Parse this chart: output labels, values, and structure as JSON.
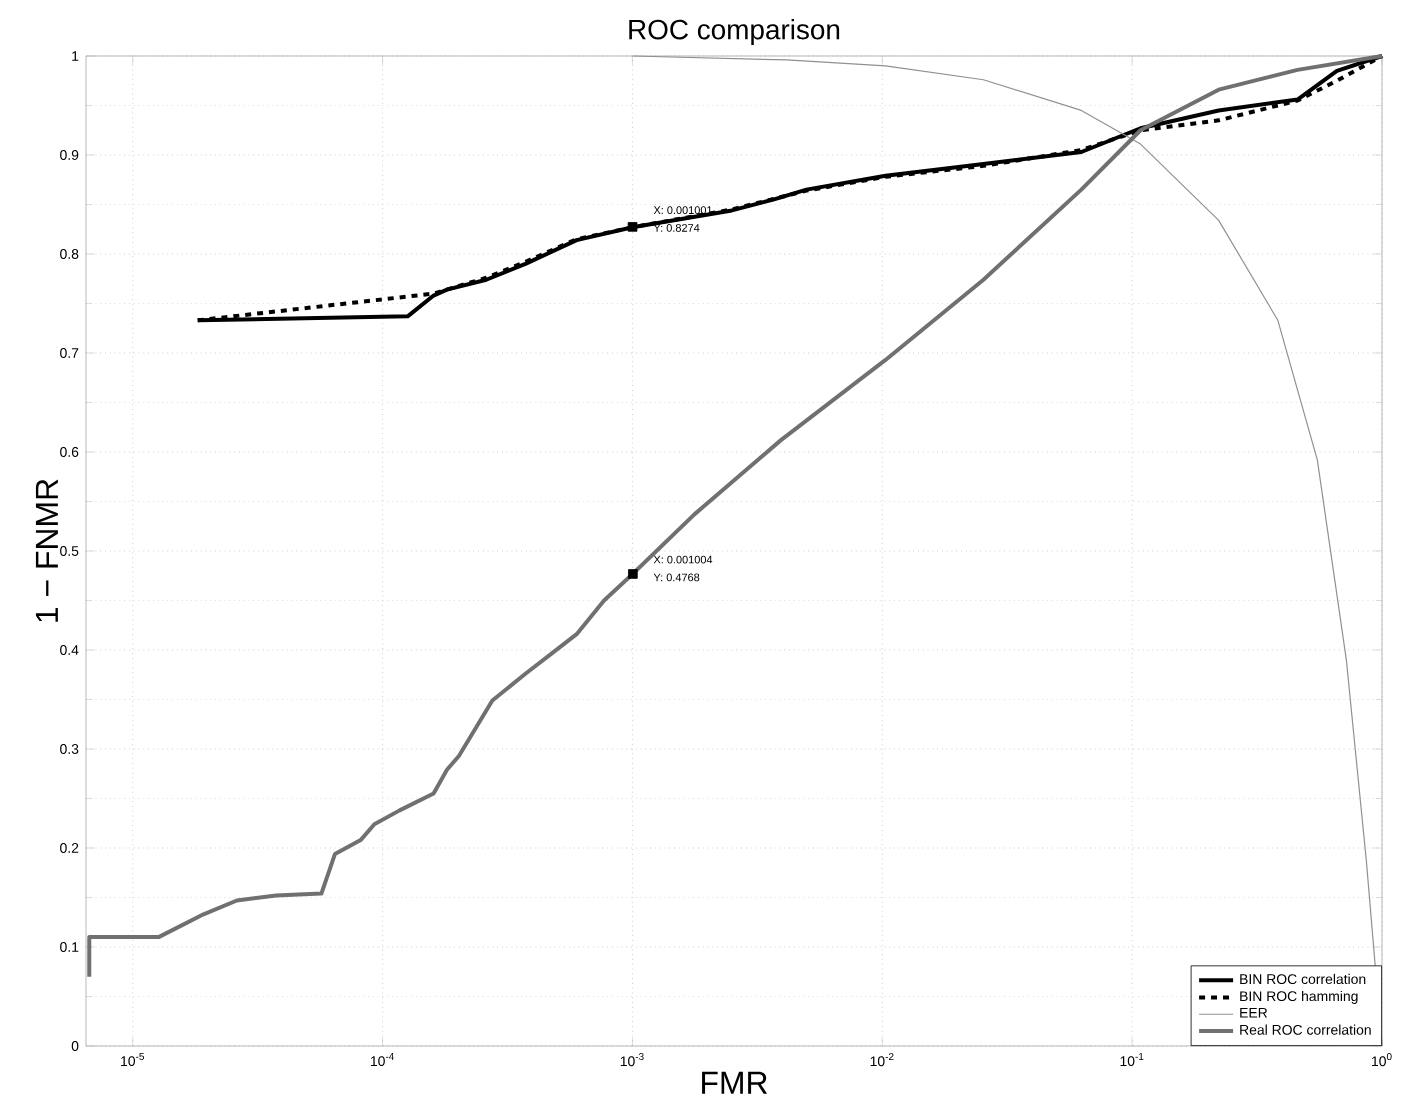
{
  "chart_data": {
    "type": "line",
    "title": "ROC comparison",
    "xlabel": "FMR",
    "ylabel": "1 − FNMR",
    "log": "x",
    "grid": true,
    "legend": "bottom right",
    "marker": "none",
    "xlim": [
      6.5e-06,
      1
    ],
    "ylim": [
      0,
      1
    ],
    "xticks": [
      {
        "value": 1e-05,
        "label": "10$^{-5}$"
      },
      {
        "value": 0.0001,
        "label": "10$^{-4}$"
      },
      {
        "value": 0.001,
        "label": "10$^{-3}$"
      },
      {
        "value": 0.01,
        "label": "10$^{-2}$"
      },
      {
        "value": 0.1,
        "label": "10$^{-1}$"
      },
      {
        "value": 1,
        "label": "10$^{0}$"
      }
    ],
    "yticks": [
      0,
      0.1,
      0.2,
      0.3,
      0.4,
      0.5,
      0.6,
      0.7,
      0.8,
      0.9,
      1
    ],
    "series": [
      {
        "name": "BIN ROC correlation",
        "color": "#000000",
        "line_style": "solid",
        "x": [
          1.82e-05,
          0.000126,
          0.00016,
          0.000181,
          0.00026,
          0.000373,
          0.000598,
          0.001001,
          0.0025,
          0.00366,
          0.00497,
          0.0103,
          0.0254,
          0.0626,
          0.108,
          0.222,
          0.459,
          0.66,
          1
        ],
        "values": [
          0.733,
          0.737,
          0.758,
          0.764,
          0.774,
          0.79,
          0.814,
          0.827,
          0.844,
          0.855,
          0.865,
          0.879,
          0.891,
          0.903,
          0.927,
          0.945,
          0.956,
          0.985,
          1
        ]
      },
      {
        "name": "BIN ROC hamming",
        "color": "#000000",
        "line_style": "dashed",
        "x": [
          1.82e-05,
          0.00016,
          0.00026,
          0.000373,
          0.000598,
          0.001001,
          0.0025,
          0.00497,
          0.0103,
          0.0254,
          0.0626,
          0.108,
          0.222,
          0.459,
          0.66,
          1
        ],
        "values": [
          0.733,
          0.76,
          0.776,
          0.792,
          0.815,
          0.827,
          0.845,
          0.864,
          0.878,
          0.889,
          0.905,
          0.925,
          0.935,
          0.955,
          0.975,
          1
        ]
      },
      {
        "name": "EER",
        "color": "#909090",
        "line_style": "solid",
        "x": [
          0.001,
          0.00415,
          0.0103,
          0.0254,
          0.0626,
          0.108,
          0.222,
          0.383,
          0.551,
          0.72,
          0.865,
          1
        ],
        "values": [
          1,
          0.996,
          0.99,
          0.976,
          0.945,
          0.911,
          0.834,
          0.733,
          0.592,
          0.39,
          0.188,
          0
        ]
      },
      {
        "name": "Real ROC correlation",
        "color": "#707070",
        "line_style": "solid",
        "x": [
          6.7e-06,
          6.7e-06,
          1.27e-05,
          1.92e-05,
          2.61e-05,
          3.75e-05,
          5.69e-05,
          6.45e-05,
          8.17e-05,
          9.27e-05,
          0.000117,
          0.00016,
          0.000181,
          0.000202,
          0.000275,
          0.000373,
          0.000473,
          0.000598,
          0.00077,
          0.001004,
          0.00177,
          0.00393,
          0.0103,
          0.0254,
          0.0626,
          0.108,
          0.222,
          0.459,
          1
        ],
        "values": [
          0.07,
          0.11,
          0.11,
          0.133,
          0.147,
          0.152,
          0.154,
          0.194,
          0.208,
          0.224,
          0.238,
          0.255,
          0.279,
          0.293,
          0.349,
          0.376,
          0.396,
          0.416,
          0.45,
          0.477,
          0.537,
          0.612,
          0.693,
          0.774,
          0.865,
          0.925,
          0.966,
          0.986,
          1
        ]
      },
      {
        "type": "scatter",
        "marker": "square",
        "color": "#000000",
        "x": [
          0.001001,
          0.001004
        ],
        "values": [
          0.8274,
          0.4768
        ]
      }
    ],
    "annotations": [
      "X: 0.001001",
      "Y: 0.8274",
      "X: 0.001004",
      "Y: 0.4768"
    ]
  }
}
